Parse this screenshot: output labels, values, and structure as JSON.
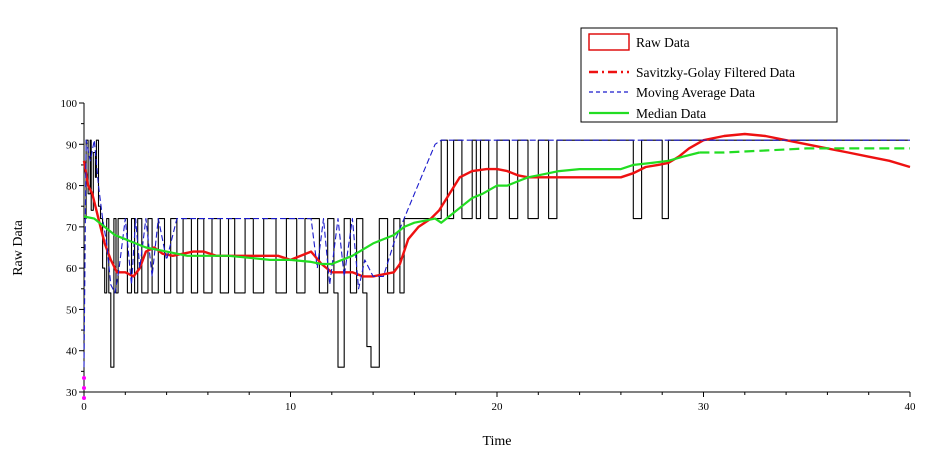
{
  "chart_data": {
    "type": "line",
    "title": "",
    "xlabel": "Time",
    "ylabel": "Raw Data",
    "xlim": [
      0,
      40
    ],
    "ylim": [
      30,
      100
    ],
    "x_ticks": [
      0,
      10,
      20,
      30,
      40
    ],
    "y_ticks": [
      30,
      40,
      50,
      60,
      70,
      80,
      90,
      100
    ],
    "grid": false,
    "legend_position": "top-right",
    "series": [
      {
        "name": "Raw Data",
        "color": "#000000",
        "style": "solid",
        "legend_color": "#dd0000",
        "x": [
          0,
          0.1,
          0.2,
          0.3,
          0.35,
          0.45,
          0.55,
          0.6,
          0.7,
          0.8,
          0.9,
          1.0,
          1.1,
          1.2,
          1.3,
          1.45,
          1.55,
          1.65,
          1.8,
          2.1,
          2.3,
          2.45,
          2.6,
          2.8,
          3.1,
          3.3,
          3.6,
          3.9,
          4.2,
          4.5,
          4.8,
          5.2,
          5.5,
          5.8,
          6.2,
          6.6,
          7.0,
          7.3,
          7.8,
          8.2,
          8.7,
          9.3,
          9.8,
          10.3,
          10.7,
          11.1,
          11.4,
          11.8,
          12.1,
          12.3,
          12.6,
          12.9,
          13.2,
          13.5,
          13.7,
          13.9,
          14.3,
          14.7,
          15.0,
          15.3,
          15.5,
          16.0,
          16.5,
          17.0,
          17.3,
          17.6,
          17.9,
          18.3,
          18.8,
          19.0,
          19.2,
          19.6,
          20.0,
          20.6,
          21.0,
          21.5,
          22.0,
          22.5,
          22.9,
          23.3,
          24.0,
          25.0,
          26.0,
          26.6,
          27.0,
          27.6,
          28.0,
          28.3,
          29.0,
          30.0,
          31.0,
          32.0,
          34.0,
          36.0,
          38.0,
          39.9
        ],
        "y": [
          72,
          91,
          78,
          91,
          74,
          88,
          82,
          91,
          75,
          72,
          60,
          54,
          72,
          54,
          36,
          72,
          54,
          72,
          72,
          54,
          72,
          54,
          72,
          54,
          72,
          54,
          72,
          54,
          72,
          54,
          72,
          54,
          72,
          54,
          72,
          54,
          72,
          54,
          72,
          54,
          72,
          54,
          72,
          54,
          72,
          72,
          54,
          72,
          54,
          36,
          72,
          54,
          72,
          54,
          41,
          36,
          72,
          54,
          72,
          54,
          72,
          72,
          72,
          72,
          91,
          72,
          91,
          72,
          91,
          72,
          91,
          72,
          91,
          72,
          91,
          72,
          91,
          72,
          91,
          91,
          91,
          91,
          91,
          72,
          91,
          91,
          72,
          91,
          91,
          91,
          91,
          91,
          91,
          91,
          91,
          91
        ]
      },
      {
        "name": "Savitzky-Golay Filtered Data",
        "color": "#ee1111",
        "style": "dash-dot",
        "x": [
          0,
          0.2,
          0.4,
          0.6,
          0.8,
          1.0,
          1.3,
          1.6,
          2.0,
          2.4,
          2.7,
          3.0,
          3.4,
          3.8,
          4.3,
          4.8,
          5.3,
          5.8,
          6.4,
          7.0,
          7.6,
          8.2,
          8.8,
          9.4,
          10.0,
          10.5,
          11.0,
          11.5,
          12.0,
          12.5,
          13.0,
          13.5,
          14.0,
          14.5,
          15.0,
          15.3,
          15.7,
          16.2,
          16.8,
          17.2,
          17.7,
          18.2,
          18.8,
          19.5,
          20.0,
          20.5,
          21.0,
          21.5,
          22.0,
          23.0,
          24.0,
          25.0,
          26.0,
          26.6,
          27.2,
          27.8,
          28.3,
          28.8,
          29.3,
          30.0,
          31.0,
          32.0,
          33.0,
          34.0,
          35.0,
          36.0,
          37.0,
          38.0,
          39.0,
          40.0
        ],
        "y": [
          86,
          80,
          78,
          74,
          70,
          66,
          62,
          59,
          59,
          58,
          60,
          64,
          65,
          63.5,
          63,
          63.5,
          64,
          64,
          63,
          63,
          63,
          63,
          63,
          63,
          62,
          63,
          64,
          61,
          59,
          59,
          59,
          58,
          58,
          58.5,
          59,
          61,
          67,
          70,
          72,
          74,
          78,
          82,
          83.5,
          84,
          84,
          83.5,
          82.5,
          82,
          82,
          82,
          82,
          82,
          82,
          83,
          84.5,
          85,
          85.5,
          87,
          89,
          91,
          92,
          92.5,
          92,
          91,
          90,
          89,
          88,
          87,
          86,
          84.5
        ]
      },
      {
        "name": "Moving Average Data",
        "color": "#1a1acc",
        "style": "dashed",
        "x": [
          0,
          0.1,
          0.3,
          0.5,
          0.7,
          0.9,
          1.1,
          1.3,
          1.5,
          1.7,
          2.0,
          2.3,
          2.5,
          2.7,
          3.0,
          3.3,
          3.6,
          4.0,
          4.5,
          5.0,
          6.0,
          7.0,
          8.0,
          9.0,
          10.0,
          11.0,
          11.3,
          11.6,
          11.9,
          12.3,
          12.6,
          13.0,
          13.3,
          13.6,
          14.0,
          14.5,
          15.0,
          15.5,
          16.0,
          16.5,
          17.0,
          17.3,
          18.0,
          19.0,
          20.0,
          22.0,
          24.0,
          26.0,
          28.0,
          30.0,
          32.0,
          35.0,
          38.0,
          40.0
        ],
        "y": [
          36,
          91,
          86,
          91,
          80,
          72,
          66,
          56,
          54,
          60,
          72,
          56,
          72,
          60,
          72,
          58,
          72,
          62,
          72,
          72,
          72,
          72,
          72,
          72,
          72,
          72,
          60,
          72,
          56,
          72,
          58,
          72,
          55,
          62,
          58,
          58,
          66,
          72,
          78,
          84,
          90,
          91,
          91,
          91,
          91,
          91,
          91,
          91,
          91,
          91,
          91,
          91,
          91,
          91
        ]
      },
      {
        "name": "Median Data",
        "color": "#22dd22",
        "style": "solid-then-dashed",
        "x": [
          0,
          0.5,
          1.0,
          1.5,
          2.0,
          2.5,
          3.0,
          3.5,
          4.0,
          5.0,
          6.0,
          7.0,
          8.0,
          9.0,
          10.0,
          11.0,
          11.5,
          12.0,
          12.5,
          13.0,
          14.0,
          15.0,
          15.5,
          16.0,
          16.5,
          17.0,
          17.3,
          17.8,
          18.3,
          18.8,
          19.3,
          20.0,
          20.5,
          21.0,
          21.5,
          22.0,
          23.0,
          24.0,
          25.0,
          26.0,
          26.6,
          27.5,
          28.3,
          29.0,
          29.8,
          31.0,
          33.0,
          35.0,
          37.0,
          40.0
        ],
        "y": [
          72.5,
          72,
          70,
          68,
          67,
          66,
          65,
          64.5,
          64,
          63,
          63,
          63,
          62.5,
          62,
          62,
          61.5,
          61,
          61,
          62,
          63,
          66,
          68,
          70,
          71,
          71.5,
          72,
          71,
          73,
          75,
          77,
          78,
          80,
          80,
          81,
          82,
          82.5,
          83.5,
          84,
          84,
          84,
          85,
          85.5,
          86,
          87,
          88,
          88,
          88.5,
          89,
          89,
          89
        ]
      }
    ]
  }
}
